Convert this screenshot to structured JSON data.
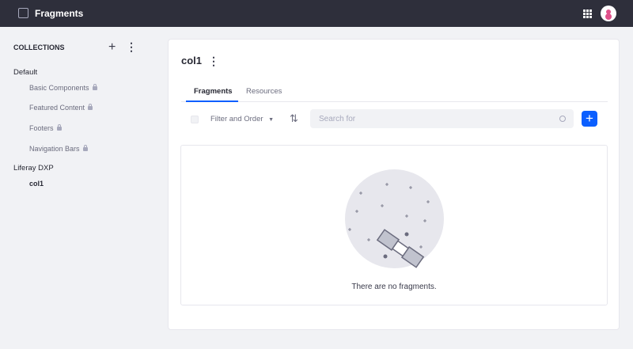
{
  "header": {
    "title": "Fragments",
    "icons": [
      "product-menu-icon",
      "apps-grid-icon",
      "user-avatar-icon"
    ]
  },
  "sidebar": {
    "heading": "COLLECTIONS",
    "groups": [
      {
        "label": "Default",
        "items": [
          {
            "label": "Basic Components",
            "locked": true
          },
          {
            "label": "Featured Content",
            "locked": true
          },
          {
            "label": "Footers",
            "locked": true
          },
          {
            "label": "Navigation Bars",
            "locked": true
          }
        ]
      },
      {
        "label": "Liferay DXP",
        "items": [
          {
            "label": "col1",
            "locked": false
          }
        ]
      }
    ]
  },
  "main": {
    "title": "col1",
    "tabs": [
      {
        "label": "Fragments",
        "active": true
      },
      {
        "label": "Resources",
        "active": false
      }
    ],
    "toolbar": {
      "filter_label": "Filter and Order",
      "search_placeholder": "Search for",
      "add_label": "+"
    },
    "empty_message": "There are no fragments."
  },
  "colors": {
    "accent": "#0b5fff",
    "topbar": "#2e2f3b"
  }
}
